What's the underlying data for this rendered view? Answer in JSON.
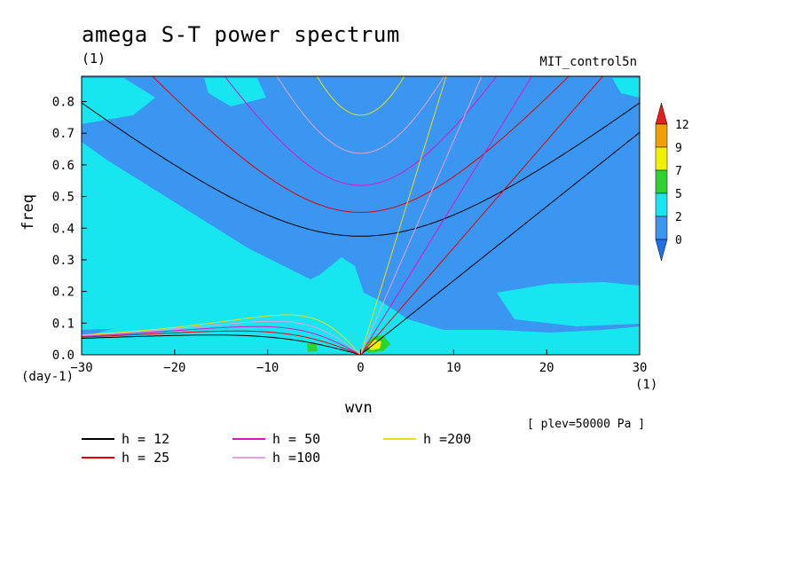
{
  "title": "amega S-T power spectrum",
  "subtitle": "(1)",
  "run_name": "MIT_control5n",
  "footnote": "[ plev=50000 Pa ]",
  "chart_data": {
    "type": "heatmap",
    "xlabel": "wvn",
    "xunits": "(1)",
    "ylabel": "freq",
    "yunits": "(day-1)",
    "xlim": [
      -30,
      30
    ],
    "ylim": [
      0,
      0.88
    ],
    "xticks": [
      "-30",
      "-20",
      "-10",
      "0",
      "10",
      "20",
      "30"
    ],
    "yticks": [
      "0.0",
      "0.1",
      "0.2",
      "0.3",
      "0.4",
      "0.5",
      "0.6",
      "0.7",
      "0.8"
    ],
    "colorbar": {
      "labels": [
        "0",
        "2",
        "5",
        "7",
        "9",
        "12"
      ],
      "colors": [
        "#1f6fe6",
        "#3a96f0",
        "#17e6f0",
        "#2ed42e",
        "#f0f000",
        "#f0a000",
        "#e61e1e"
      ]
    },
    "background_level_color": "#3a96f0",
    "dispersion_curves": {
      "equivalent_depths_m": [
        12,
        25,
        50,
        100,
        200
      ],
      "colors": [
        "#000000",
        "#e60000",
        "#dc14c8",
        "#e6a0e0",
        "#f0dc14"
      ],
      "legend": [
        {
          "label": "h = 12",
          "color": "#000000"
        },
        {
          "label": "h = 25",
          "color": "#e60000"
        },
        {
          "label": "h = 50",
          "color": "#dc14c8"
        },
        {
          "label": "h =100",
          "color": "#e6a0e0"
        },
        {
          "label": "h =200",
          "color": "#f0dc14"
        }
      ]
    }
  }
}
